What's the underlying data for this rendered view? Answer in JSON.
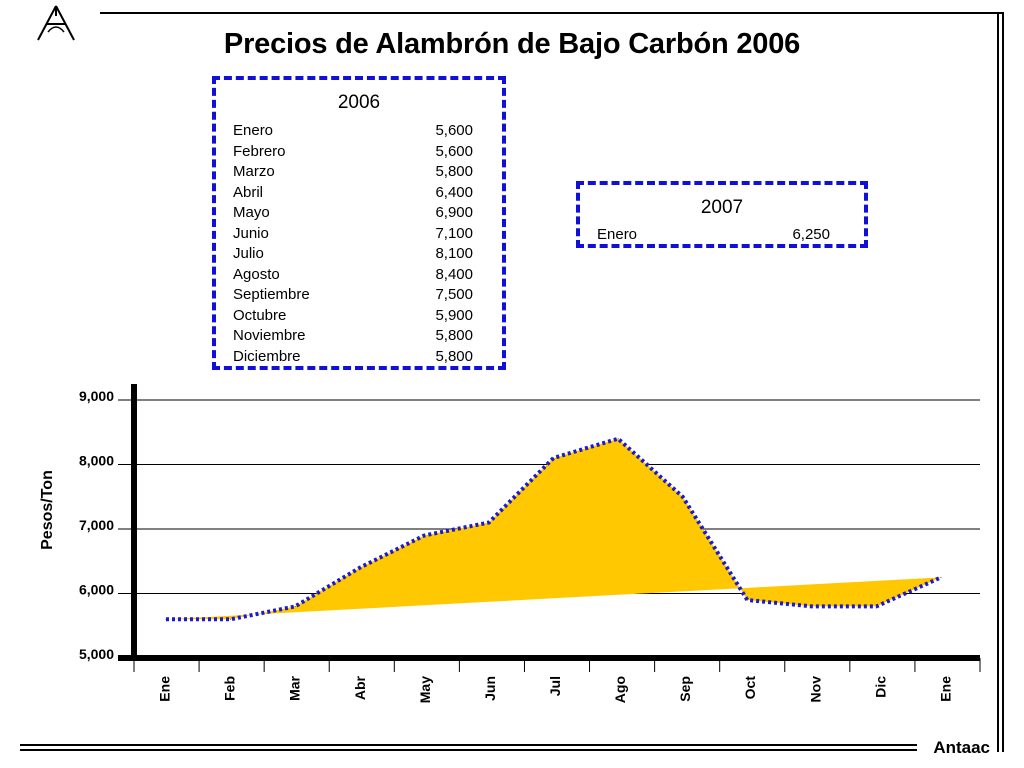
{
  "page": {
    "title": "Precios de Alambrón de Bajo Carbón 2006",
    "footer": "Antaac",
    "logo": "antaac-logo-icon"
  },
  "table_2006": {
    "year": "2006",
    "rows": [
      {
        "month": "Enero",
        "value": "5,600"
      },
      {
        "month": "Febrero",
        "value": "5,600"
      },
      {
        "month": "Marzo",
        "value": "5,800"
      },
      {
        "month": "Abril",
        "value": "6,400"
      },
      {
        "month": "Mayo",
        "value": "6,900"
      },
      {
        "month": "Junio",
        "value": "7,100"
      },
      {
        "month": "Julio",
        "value": "8,100"
      },
      {
        "month": "Agosto",
        "value": "8,400"
      },
      {
        "month": "Septiembre",
        "value": "7,500"
      },
      {
        "month": "Octubre",
        "value": "5,900"
      },
      {
        "month": "Noviembre",
        "value": "5,800"
      },
      {
        "month": "Diciembre",
        "value": "5,800"
      }
    ]
  },
  "table_2007": {
    "year": "2007",
    "rows": [
      {
        "month": "Enero",
        "value": "6,250"
      }
    ]
  },
  "colors": {
    "box_border": "#1010d8",
    "line": "#1a1ad0",
    "area_fill": "#ffc800",
    "axis": "#000000"
  },
  "chart_data": {
    "type": "area",
    "title": "Precios de Alambrón de Bajo Carbón 2006",
    "ylabel": "Pesos/Ton",
    "xlabel": "",
    "categories": [
      "Ene",
      "Feb",
      "Mar",
      "Abr",
      "May",
      "Jun",
      "Jul",
      "Ago",
      "Sep",
      "Oct",
      "Nov",
      "Dic",
      "Ene"
    ],
    "series": [
      {
        "values": [
          5600,
          5600,
          5800,
          6400,
          6900,
          7100,
          8100,
          8400,
          7500,
          5900,
          5800,
          5800,
          6250
        ]
      }
    ],
    "trend": {
      "start": 5600,
      "end": 6250
    },
    "ylim": [
      5000,
      9000
    ],
    "yticks": [
      5000,
      6000,
      7000,
      8000,
      9000
    ],
    "ytick_labels": [
      "5,000",
      "6,000",
      "7,000",
      "8,000",
      "9,000"
    ],
    "grid": true
  }
}
